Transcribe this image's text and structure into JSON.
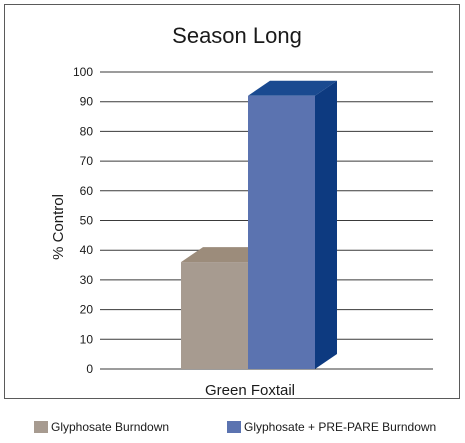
{
  "chart_data": {
    "type": "bar",
    "title": "Season Long",
    "xlabel": "",
    "ylabel": "% Control",
    "categories": [
      "Green Foxtail"
    ],
    "ylim": [
      0,
      100
    ],
    "yticks": [
      0,
      10,
      20,
      30,
      40,
      50,
      60,
      70,
      80,
      90,
      100
    ],
    "grid": true,
    "legend_position": "bottom",
    "series": [
      {
        "name": "Glyphosate Burndown",
        "values": [
          36
        ],
        "color": "#a79b90",
        "side_color": "#8a7d70",
        "top_color": "#9c8c7b"
      },
      {
        "name": "Glyphosate + PRE-PARE Burndown",
        "values": [
          92
        ],
        "color": "#5b73b0",
        "side_color": "#0d3a80",
        "top_color": "#1a4a90"
      }
    ]
  }
}
